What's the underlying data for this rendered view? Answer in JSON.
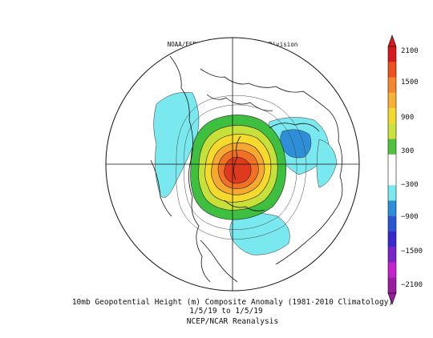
{
  "credit": "NOAA/ESRL Physical Sciences Division",
  "caption": {
    "line1": "10mb Geopotential Height (m) Composite Anomaly (1981-2010 Climatology)",
    "line2": "1/5/19   to 1/5/19",
    "line3": "NCEP/NCAR Reanalysis"
  },
  "map": {
    "projection": "north-polar-stereographic",
    "variable": "10mb geopotential height anomaly",
    "anomaly_center_description": "strong positive anomaly over northern Eurasia / Arctic, negative anomalies over North Pacific, North Atlantic and Siberia"
  },
  "colorbar": {
    "labels": [
      "2100",
      "1500",
      "900",
      "300",
      "−300",
      "−900",
      "−1500",
      "−2100"
    ],
    "colors_top_to_bottom": [
      "#d7191c",
      "#f0501e",
      "#f5862d",
      "#f8b130",
      "#f2d92c",
      "#cde23a",
      "#4fc33c",
      "#ffffff",
      "#ffffff",
      "#7ae8ef",
      "#2d8fd8",
      "#2b57d6",
      "#3a28d0",
      "#7a22cc",
      "#c81fd0",
      "#9b1ca0"
    ]
  },
  "colors": {
    "pos_1": "#3fbf3f",
    "pos_2": "#c8e03a",
    "pos_3": "#f5d92c",
    "pos_4": "#f7a830",
    "pos_5": "#f07026",
    "pos_6": "#e03a1e",
    "neg_1": "#7ae8ef",
    "neg_2": "#2d8fd8"
  }
}
